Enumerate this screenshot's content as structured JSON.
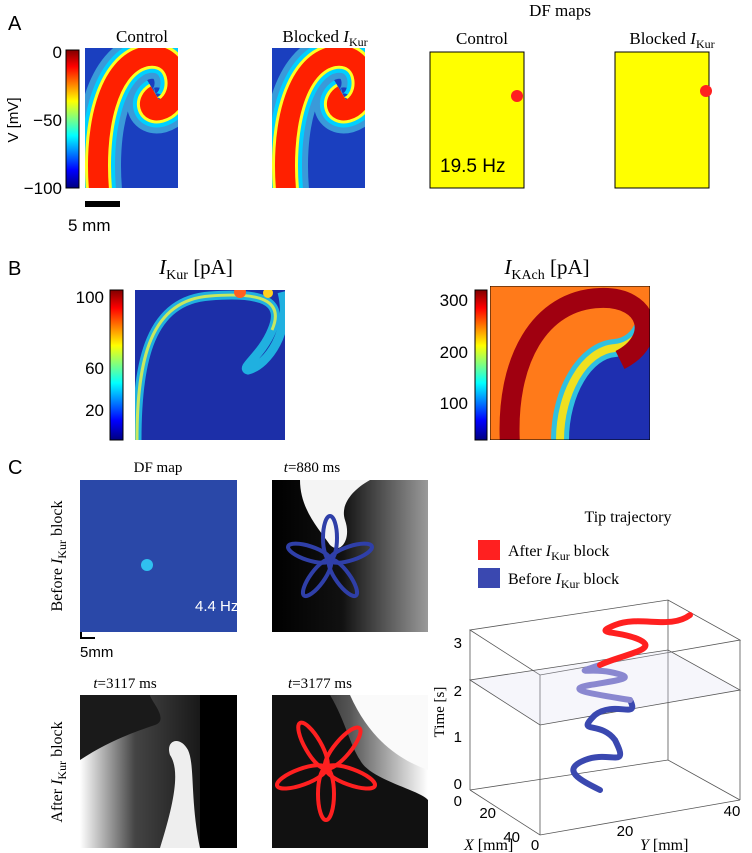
{
  "panel_a": {
    "label": "A",
    "titles": [
      {
        "text": "Control"
      },
      {
        "prefix": "Blocked ",
        "symbol": "I",
        "sub": "Kur"
      }
    ],
    "df_heading": "DF maps",
    "df_titles": [
      {
        "text": "Control"
      },
      {
        "prefix": "Blocked ",
        "symbol": "I",
        "sub": "Kur"
      }
    ],
    "colorbar_label": "V [mV]",
    "colorbar_ticks": [
      "0",
      "−50",
      "−100"
    ],
    "scale_bar": "5 mm",
    "df_value": "19.5 Hz"
  },
  "panel_b": {
    "label": "B",
    "maps": [
      {
        "symbol": "I",
        "sub": "Kur",
        "unit": " [pA]",
        "ticks": [
          "100",
          "60",
          "20"
        ]
      },
      {
        "symbol": "I",
        "sub": "KAch",
        "unit": " [pA]",
        "ticks": [
          "300",
          "200",
          "100"
        ]
      }
    ]
  },
  "panel_c": {
    "label": "C",
    "df_title": "DF map",
    "df_value": "4.4 Hz",
    "scale_bar": "5mm",
    "rows": [
      {
        "prefix": "Before ",
        "symbol": "I",
        "sub": "Kur",
        "suffix": " block"
      },
      {
        "prefix": "After ",
        "symbol": "I",
        "sub": "Kur",
        "suffix": " block"
      }
    ],
    "snapshots": [
      {
        "symbol": "t",
        "rest": "=880 ms"
      },
      {
        "symbol": "t",
        "rest": "=3117 ms"
      },
      {
        "symbol": "t",
        "rest": "=3177 ms"
      }
    ],
    "trajectory_title": "Tip trajectory",
    "legend": [
      {
        "prefix": "After ",
        "symbol": "I",
        "sub": "Kur",
        "suffix": " block"
      },
      {
        "prefix": "Before ",
        "symbol": "I",
        "sub": "Kur",
        "suffix": " block"
      }
    ],
    "time_label": "Time [s]",
    "time_ticks": [
      "3",
      "2",
      "1",
      "0"
    ],
    "x_label": {
      "symbol": "X",
      "rest": " [mm]"
    },
    "x_ticks": [
      "0",
      "20",
      "40"
    ],
    "y_label": {
      "symbol": "Y",
      "rest": " [mm]"
    },
    "y_ticks": [
      "0",
      "20",
      "40"
    ]
  }
}
